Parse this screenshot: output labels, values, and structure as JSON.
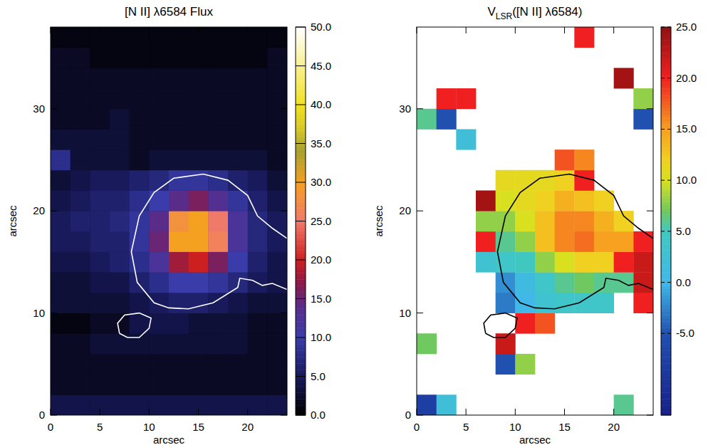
{
  "chart_data": [
    {
      "type": "heatmap",
      "title": "[N II] λ6584 Flux",
      "x_label": "arcsec",
      "y_label": "arcsec",
      "xlim": [
        0,
        24
      ],
      "ylim": [
        0,
        38
      ],
      "xticks": [
        0,
        5,
        10,
        15,
        20
      ],
      "yticks": [
        0,
        10,
        20,
        30
      ],
      "x_edges": [
        0,
        2,
        4,
        6,
        8,
        10,
        12,
        14,
        16,
        18,
        20,
        22,
        24
      ],
      "y_edges": [
        0,
        2,
        4,
        6,
        8,
        10,
        12,
        14,
        16,
        18,
        20,
        22,
        24,
        26,
        28,
        30,
        32,
        34,
        36,
        38
      ],
      "cells": [
        [
          4,
          4,
          4,
          4,
          4,
          4,
          4,
          4,
          4,
          4,
          4,
          4
        ],
        [
          2,
          2,
          2,
          2,
          2,
          2,
          2,
          2,
          2,
          2,
          2,
          2
        ],
        [
          2,
          2,
          2,
          2,
          2,
          2,
          2,
          2,
          2,
          2,
          2,
          2
        ],
        [
          2,
          2,
          3,
          3,
          3,
          3,
          3,
          3,
          3,
          3,
          2,
          2
        ],
        [
          1,
          1,
          2,
          2,
          4,
          4,
          4,
          3,
          3,
          3,
          2,
          2
        ],
        [
          3,
          3,
          3,
          3,
          4,
          5,
          6,
          6,
          5,
          4,
          3,
          3
        ],
        [
          3,
          3,
          4,
          4,
          6,
          8,
          10,
          10,
          9,
          7,
          5,
          4
        ],
        [
          4,
          4,
          5,
          6,
          8,
          12,
          18,
          20,
          16,
          10,
          6,
          4
        ],
        [
          5,
          5,
          6,
          6,
          9,
          15,
          30,
          30,
          26,
          12,
          7,
          5
        ],
        [
          5,
          6,
          6,
          7,
          9,
          14,
          28,
          30,
          25,
          12,
          7,
          5
        ],
        [
          4,
          5,
          6,
          6,
          8,
          10,
          14,
          16,
          13,
          9,
          6,
          4
        ],
        [
          3,
          4,
          5,
          5,
          6,
          7,
          9,
          9,
          8,
          6,
          5,
          3
        ],
        [
          8,
          3,
          3,
          3,
          2,
          3,
          3,
          3,
          3,
          3,
          3,
          2
        ],
        [
          3,
          3,
          3,
          3,
          2,
          2,
          2,
          2,
          2,
          2,
          2,
          2
        ],
        [
          2,
          2,
          2,
          3,
          2,
          2,
          2,
          2,
          2,
          2,
          2,
          2
        ],
        [
          2,
          2,
          2,
          2,
          2,
          2,
          2,
          2,
          2,
          2,
          2,
          2
        ],
        [
          2,
          2,
          2,
          2,
          2,
          2,
          2,
          2,
          2,
          2,
          2,
          2
        ],
        [
          2,
          2,
          1,
          1,
          1,
          1,
          1,
          1,
          1,
          1,
          1,
          2
        ],
        [
          1,
          1,
          1,
          1,
          1,
          1,
          1,
          1,
          1,
          1,
          1,
          1
        ]
      ],
      "colorbar_range": [
        0,
        50
      ],
      "colorbar_ticks": [
        {
          "value": 0,
          "label": "0.0"
        },
        {
          "value": 5,
          "label": "5.0"
        },
        {
          "value": 10,
          "label": "10.0"
        },
        {
          "value": 15,
          "label": "15.0"
        },
        {
          "value": 20,
          "label": "20.0"
        },
        {
          "value": 25,
          "label": "25.0"
        },
        {
          "value": 30,
          "label": "30.0"
        },
        {
          "value": 35,
          "label": "35.0"
        },
        {
          "value": 40,
          "label": "40.0"
        },
        {
          "value": 45,
          "label": "45.0"
        },
        {
          "value": 50,
          "label": "50.0"
        }
      ],
      "contours": [
        {
          "color": "#ffffff",
          "points": [
            [
              24,
              17.3
            ],
            [
              22.5,
              18.3
            ],
            [
              21,
              19.5
            ],
            [
              20,
              21.5
            ],
            [
              18,
              23
            ],
            [
              15.5,
              23.6
            ],
            [
              12.5,
              23.2
            ],
            [
              10.5,
              21.8
            ],
            [
              9,
              19.5
            ],
            [
              8.2,
              16
            ],
            [
              8.8,
              13
            ],
            [
              10.5,
              11
            ],
            [
              12,
              10.5
            ],
            [
              14,
              10.4
            ],
            [
              16.5,
              11
            ],
            [
              19,
              12.5
            ],
            [
              19.2,
              13.4
            ],
            [
              20.5,
              13.2
            ],
            [
              21.5,
              12.7
            ],
            [
              22.5,
              12.9
            ],
            [
              24,
              12.3
            ]
          ]
        },
        {
          "color": "#ffffff",
          "points": [
            [
              7,
              8
            ],
            [
              6.8,
              9
            ],
            [
              7.5,
              9.8
            ],
            [
              9,
              10
            ],
            [
              10.2,
              9.5
            ],
            [
              10,
              8.5
            ],
            [
              9,
              7.6
            ],
            [
              7.8,
              7.6
            ],
            [
              7,
              8
            ]
          ]
        }
      ]
    },
    {
      "type": "heatmap",
      "title_parts": [
        {
          "text": "V"
        },
        {
          "text": "LSR",
          "subscript": true
        },
        {
          "text": "([N II] λ6584)"
        }
      ],
      "x_label": "arcsec",
      "y_label": "arcsec",
      "xlim": [
        0,
        24
      ],
      "ylim": [
        0,
        38
      ],
      "xticks": [
        0,
        5,
        10,
        15,
        20
      ],
      "yticks": [
        0,
        10,
        20,
        30
      ],
      "x_edges": [
        0,
        2,
        4,
        6,
        8,
        10,
        12,
        14,
        16,
        18,
        20,
        22,
        24
      ],
      "y_edges": [
        0,
        2,
        4,
        6,
        8,
        10,
        12,
        14,
        16,
        18,
        20,
        22,
        24,
        26,
        28,
        30,
        32,
        34,
        36,
        38
      ],
      "cells": [
        [
          -8,
          2,
          null,
          null,
          null,
          null,
          null,
          null,
          null,
          null,
          6,
          null
        ],
        [
          null,
          null,
          null,
          null,
          null,
          null,
          null,
          null,
          null,
          null,
          null,
          null
        ],
        [
          null,
          null,
          null,
          null,
          -5,
          8,
          null,
          null,
          null,
          null,
          null,
          null
        ],
        [
          7,
          null,
          null,
          null,
          22,
          null,
          null,
          null,
          null,
          null,
          null,
          null
        ],
        [
          null,
          null,
          null,
          null,
          null,
          20,
          18,
          null,
          null,
          null,
          null,
          null
        ],
        [
          null,
          null,
          null,
          null,
          -3,
          0,
          3,
          4,
          4,
          4,
          null,
          20
        ],
        [
          null,
          null,
          null,
          null,
          -2,
          1,
          4,
          6,
          7,
          6,
          6,
          22
        ],
        [
          null,
          null,
          null,
          3,
          4,
          5,
          8,
          10,
          12,
          12,
          20,
          22
        ],
        [
          null,
          null,
          null,
          20,
          6,
          8,
          13,
          16,
          17,
          15,
          15,
          20
        ],
        [
          null,
          null,
          null,
          8,
          8,
          10,
          13,
          16,
          16,
          14,
          12,
          null
        ],
        [
          null,
          null,
          null,
          24,
          10,
          11,
          12,
          14,
          13,
          12,
          null,
          null
        ],
        [
          null,
          null,
          null,
          null,
          11,
          11,
          11,
          12,
          20,
          null,
          null,
          null
        ],
        [
          null,
          null,
          null,
          null,
          null,
          null,
          null,
          18,
          16,
          null,
          null,
          null
        ],
        [
          null,
          null,
          2,
          null,
          null,
          null,
          null,
          null,
          null,
          null,
          null,
          null
        ],
        [
          6,
          -5,
          null,
          null,
          null,
          null,
          null,
          null,
          null,
          null,
          null,
          -5
        ],
        [
          null,
          20,
          20,
          null,
          null,
          null,
          null,
          null,
          null,
          null,
          null,
          8
        ],
        [
          null,
          null,
          null,
          null,
          null,
          null,
          null,
          null,
          null,
          null,
          24,
          null
        ],
        [
          null,
          null,
          null,
          null,
          null,
          null,
          null,
          null,
          null,
          null,
          null,
          null
        ],
        [
          null,
          null,
          null,
          null,
          null,
          null,
          null,
          null,
          20,
          null,
          null,
          null
        ]
      ],
      "colorbar_range": [
        -13,
        25
      ],
      "colorbar_ticks": [
        {
          "value": -5,
          "label": "-5.0"
        },
        {
          "value": 0,
          "label": "0.0"
        },
        {
          "value": 5,
          "label": "5.0"
        },
        {
          "value": 10,
          "label": "10.0"
        },
        {
          "value": 15,
          "label": "15.0"
        },
        {
          "value": 20,
          "label": "20.0"
        },
        {
          "value": 25,
          "label": "25.0"
        }
      ],
      "contours": [
        {
          "color": "#000000",
          "points": [
            [
              24,
              17.3
            ],
            [
              22.5,
              18.3
            ],
            [
              21,
              19.5
            ],
            [
              20,
              21.5
            ],
            [
              18,
              23
            ],
            [
              15.5,
              23.6
            ],
            [
              12.5,
              23.2
            ],
            [
              10.5,
              21.8
            ],
            [
              9,
              19.5
            ],
            [
              8.2,
              16
            ],
            [
              8.8,
              13
            ],
            [
              10.5,
              11
            ],
            [
              12,
              10.5
            ],
            [
              14,
              10.4
            ],
            [
              16.5,
              11
            ],
            [
              19,
              12.5
            ],
            [
              19.2,
              13.4
            ],
            [
              20.5,
              13.2
            ],
            [
              21.5,
              12.7
            ],
            [
              22.5,
              12.9
            ],
            [
              24,
              12.3
            ]
          ]
        },
        {
          "color": "#000000",
          "points": [
            [
              7,
              8
            ],
            [
              6.8,
              9
            ],
            [
              7.5,
              9.8
            ],
            [
              9,
              10
            ],
            [
              10.2,
              9.5
            ],
            [
              10,
              8.5
            ],
            [
              9,
              7.6
            ],
            [
              7.8,
              7.6
            ],
            [
              7,
              8
            ]
          ]
        }
      ]
    }
  ]
}
